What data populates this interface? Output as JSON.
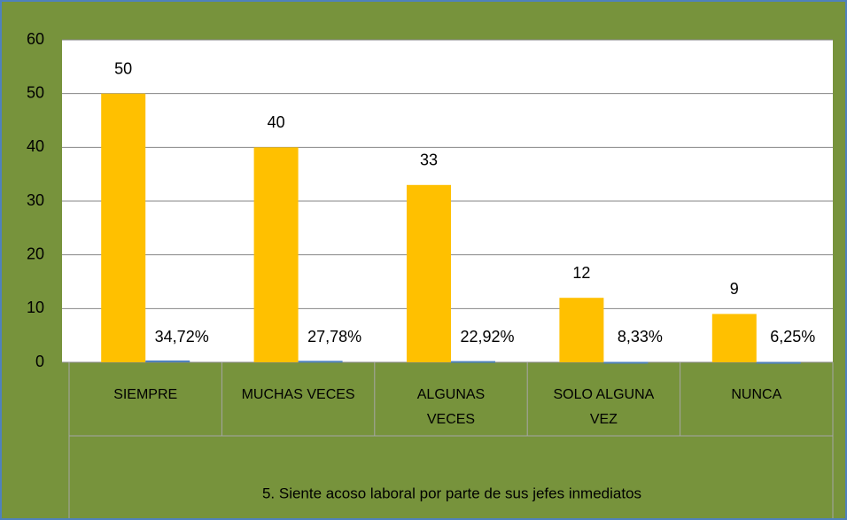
{
  "chart_data": {
    "type": "bar",
    "categories": [
      "SIEMPRE",
      "MUCHAS VECES",
      "ALGUNAS VECES",
      "SOLO ALGUNA VEZ",
      "NUNCA"
    ],
    "group_label": "5. Siente acoso laboral por parte de sus jefes inmediatos",
    "series": [
      {
        "color": "#ffc000",
        "values": [
          50,
          40,
          33,
          12,
          9
        ]
      },
      {
        "color": "#4f81bd",
        "values": [
          0.3472,
          0.2778,
          0.2292,
          0.0833,
          0.0625
        ],
        "value_labels": [
          "34,72%",
          "27,78%",
          "22,92%",
          "8,33%",
          "6,25%"
        ]
      }
    ],
    "ylim": [
      0,
      60
    ],
    "yticks": [
      0,
      10,
      20,
      30,
      40,
      50,
      60
    ],
    "grid": true
  }
}
